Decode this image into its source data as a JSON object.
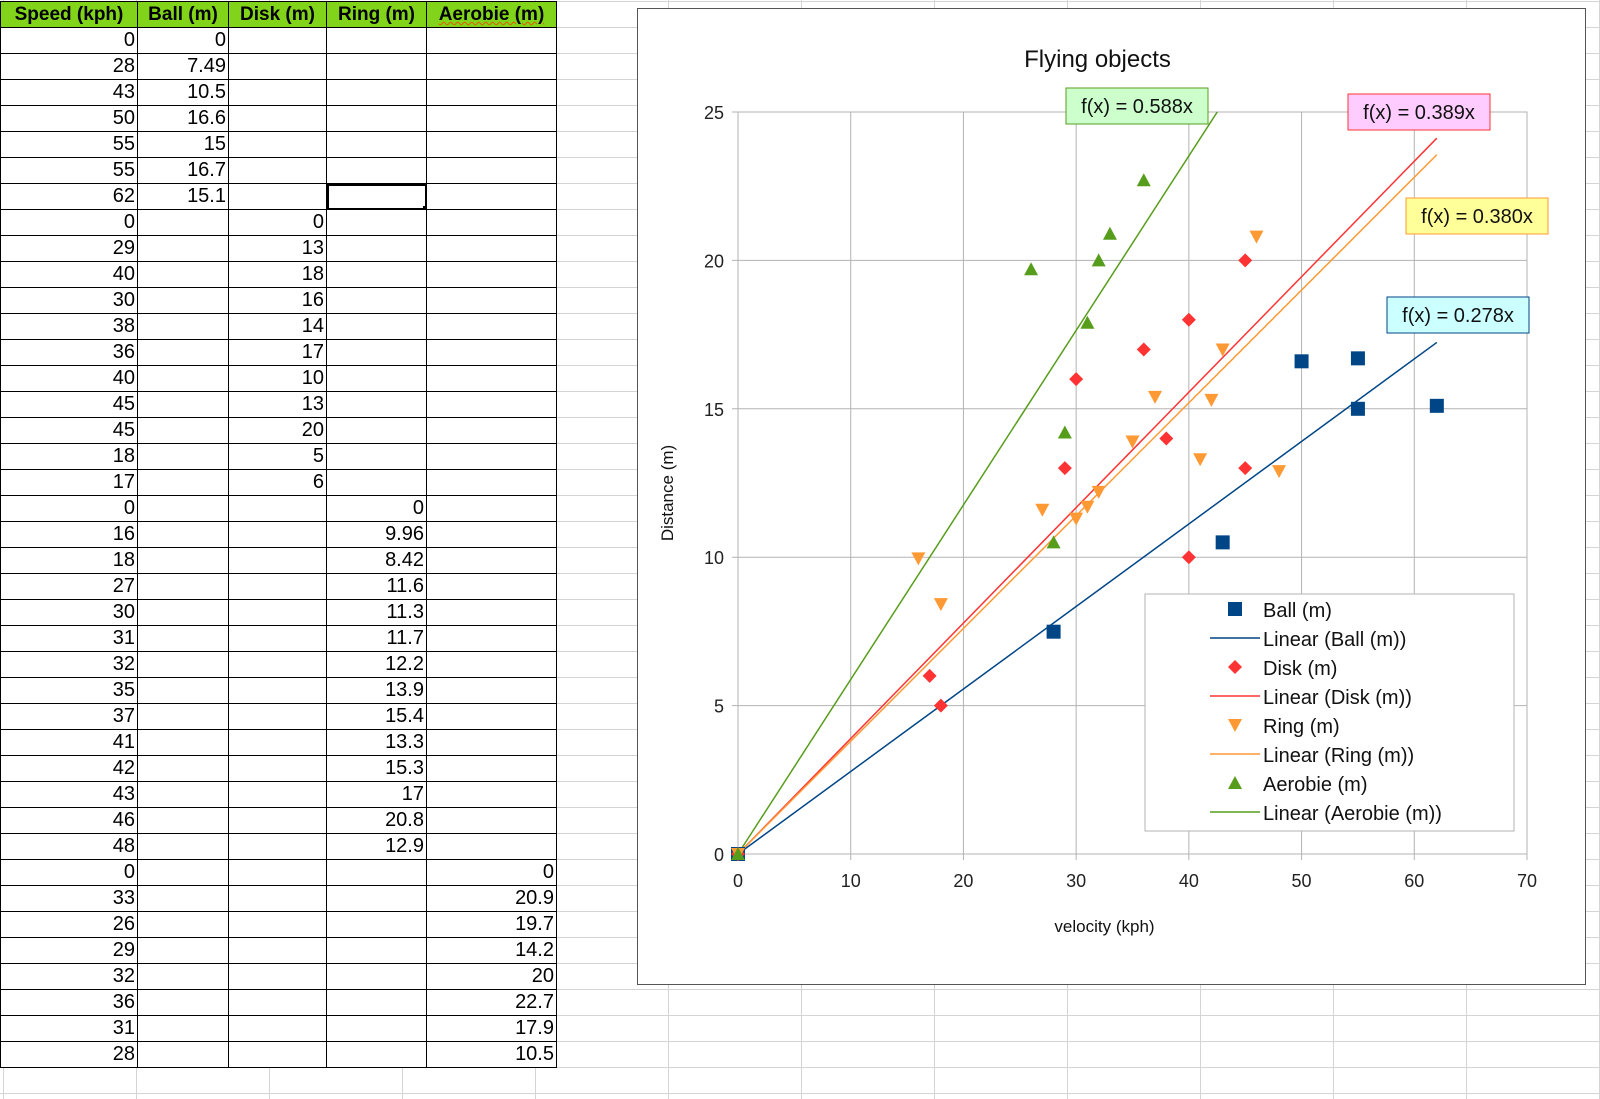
{
  "table": {
    "headers": [
      "Speed (kph)",
      "Ball (m)",
      "Disk (m)",
      "Ring (m)",
      "Aerobie (m)"
    ],
    "rows": [
      [
        "0",
        "0",
        "",
        "",
        ""
      ],
      [
        "28",
        "7.49",
        "",
        "",
        ""
      ],
      [
        "43",
        "10.5",
        "",
        "",
        ""
      ],
      [
        "50",
        "16.6",
        "",
        "",
        ""
      ],
      [
        "55",
        "15",
        "",
        "",
        ""
      ],
      [
        "55",
        "16.7",
        "",
        "",
        ""
      ],
      [
        "62",
        "15.1",
        "",
        "",
        ""
      ],
      [
        "0",
        "",
        "0",
        "",
        ""
      ],
      [
        "29",
        "",
        "13",
        "",
        ""
      ],
      [
        "40",
        "",
        "18",
        "",
        ""
      ],
      [
        "30",
        "",
        "16",
        "",
        ""
      ],
      [
        "38",
        "",
        "14",
        "",
        ""
      ],
      [
        "36",
        "",
        "17",
        "",
        ""
      ],
      [
        "40",
        "",
        "10",
        "",
        ""
      ],
      [
        "45",
        "",
        "13",
        "",
        ""
      ],
      [
        "45",
        "",
        "20",
        "",
        ""
      ],
      [
        "18",
        "",
        "5",
        "",
        ""
      ],
      [
        "17",
        "",
        "6",
        "",
        ""
      ],
      [
        "0",
        "",
        "",
        "0",
        ""
      ],
      [
        "16",
        "",
        "",
        "9.96",
        ""
      ],
      [
        "18",
        "",
        "",
        "8.42",
        ""
      ],
      [
        "27",
        "",
        "",
        "11.6",
        ""
      ],
      [
        "30",
        "",
        "",
        "11.3",
        ""
      ],
      [
        "31",
        "",
        "",
        "11.7",
        ""
      ],
      [
        "32",
        "",
        "",
        "12.2",
        ""
      ],
      [
        "35",
        "",
        "",
        "13.9",
        ""
      ],
      [
        "37",
        "",
        "",
        "15.4",
        ""
      ],
      [
        "41",
        "",
        "",
        "13.3",
        ""
      ],
      [
        "42",
        "",
        "",
        "15.3",
        ""
      ],
      [
        "43",
        "",
        "",
        "17",
        ""
      ],
      [
        "46",
        "",
        "",
        "20.8",
        ""
      ],
      [
        "48",
        "",
        "",
        "12.9",
        ""
      ],
      [
        "0",
        "",
        "",
        "",
        "0"
      ],
      [
        "33",
        "",
        "",
        "",
        "20.9"
      ],
      [
        "26",
        "",
        "",
        "",
        "19.7"
      ],
      [
        "29",
        "",
        "",
        "",
        "14.2"
      ],
      [
        "32",
        "",
        "",
        "",
        "20"
      ],
      [
        "36",
        "",
        "",
        "",
        "22.7"
      ],
      [
        "31",
        "",
        "",
        "",
        "17.9"
      ],
      [
        "28",
        "",
        "",
        "",
        "10.5"
      ]
    ],
    "selected_cell": {
      "row": 6,
      "col": 3
    }
  },
  "chart_data": {
    "type": "scatter",
    "title": "Flying objects",
    "xlabel": "velocity (kph)",
    "ylabel": "Distance  (m)",
    "xlim": [
      0,
      70
    ],
    "ylim": [
      0,
      25
    ],
    "xticks": [
      0,
      10,
      20,
      30,
      40,
      50,
      60,
      70
    ],
    "yticks": [
      0,
      5,
      10,
      15,
      20,
      25
    ],
    "grid": true,
    "legend_position": "bottom-right",
    "series": [
      {
        "name": "Ball (m)",
        "trend_name": "Linear (Ball (m))",
        "marker": "square",
        "color": "#004586",
        "points": [
          [
            0,
            0
          ],
          [
            28,
            7.49
          ],
          [
            43,
            10.5
          ],
          [
            50,
            16.6
          ],
          [
            55,
            15
          ],
          [
            55,
            16.7
          ],
          [
            62,
            15.1
          ]
        ],
        "slope": 0.278,
        "equation": "f(x) = 0.278x",
        "eq_bg": "#ccffff"
      },
      {
        "name": "Disk (m)",
        "trend_name": "Linear (Disk (m))",
        "marker": "diamond",
        "color": "#ff3333",
        "points": [
          [
            0,
            0
          ],
          [
            29,
            13
          ],
          [
            40,
            18
          ],
          [
            30,
            16
          ],
          [
            38,
            14
          ],
          [
            36,
            17
          ],
          [
            40,
            10
          ],
          [
            45,
            13
          ],
          [
            45,
            20
          ],
          [
            18,
            5
          ],
          [
            17,
            6
          ]
        ],
        "slope": 0.389,
        "equation": "f(x) = 0.389x",
        "eq_bg": "#ffccff"
      },
      {
        "name": "Ring (m)",
        "trend_name": "Linear (Ring (m))",
        "marker": "triangle-down",
        "color": "#ff9933",
        "points": [
          [
            0,
            0
          ],
          [
            16,
            9.96
          ],
          [
            18,
            8.42
          ],
          [
            27,
            11.6
          ],
          [
            30,
            11.3
          ],
          [
            31,
            11.7
          ],
          [
            32,
            12.2
          ],
          [
            35,
            13.9
          ],
          [
            37,
            15.4
          ],
          [
            41,
            13.3
          ],
          [
            42,
            15.3
          ],
          [
            43,
            17
          ],
          [
            46,
            20.8
          ],
          [
            48,
            12.9
          ]
        ],
        "slope": 0.38,
        "equation": "f(x) = 0.380x",
        "eq_bg": "#ffff99"
      },
      {
        "name": "Aerobie (m)",
        "trend_name": "Linear (Aerobie (m))",
        "marker": "triangle-up",
        "color": "#579d1c",
        "points": [
          [
            0,
            0
          ],
          [
            33,
            20.9
          ],
          [
            26,
            19.7
          ],
          [
            29,
            14.2
          ],
          [
            32,
            20
          ],
          [
            36,
            22.7
          ],
          [
            31,
            17.9
          ],
          [
            28,
            10.5
          ]
        ],
        "slope": 0.588,
        "equation": "f(x) = 0.588x",
        "eq_bg": "#ccffcc"
      }
    ]
  }
}
